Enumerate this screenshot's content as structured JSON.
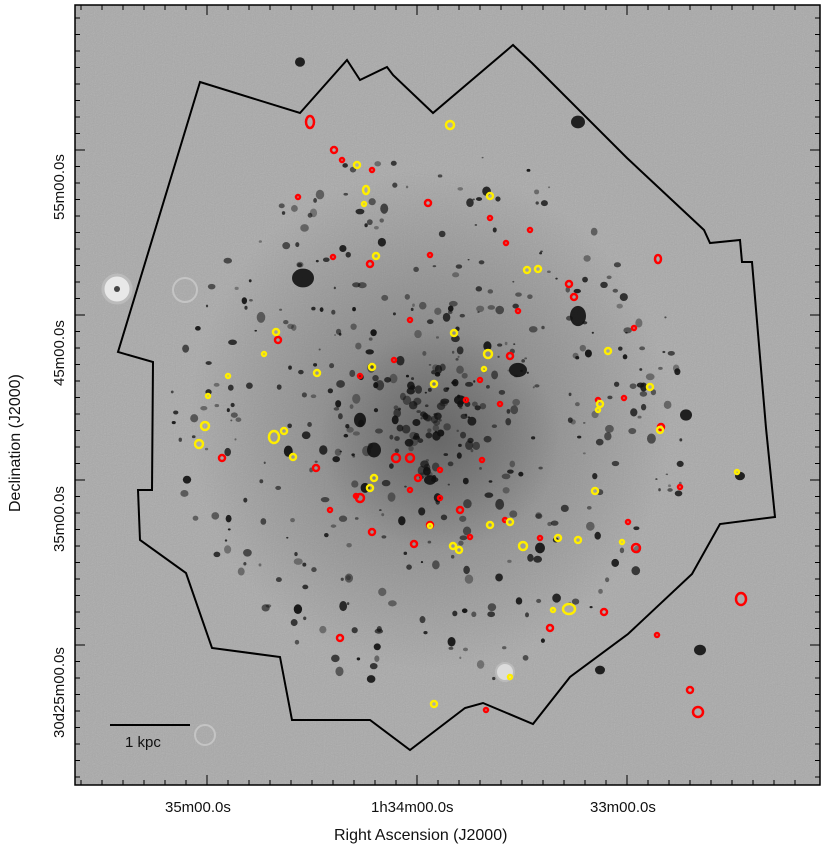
{
  "figure": {
    "x_axis_title": "Right Ascension (J2000)",
    "y_axis_title": "Declination (J2000)",
    "x_tick_labels": [
      "35m00.0s",
      "1h34m00.0s",
      "33m00.0s"
    ],
    "y_tick_labels": [
      "55m00.0s",
      "45m00.0s",
      "35m00.0s",
      "30d25m00.0s"
    ],
    "scale_bar_label": "1 kpc",
    "colors": {
      "background": "#a9a9a9",
      "footprint": "#000000",
      "marker_red": "#ff0000",
      "marker_yellow": "#ffee00"
    }
  }
}
